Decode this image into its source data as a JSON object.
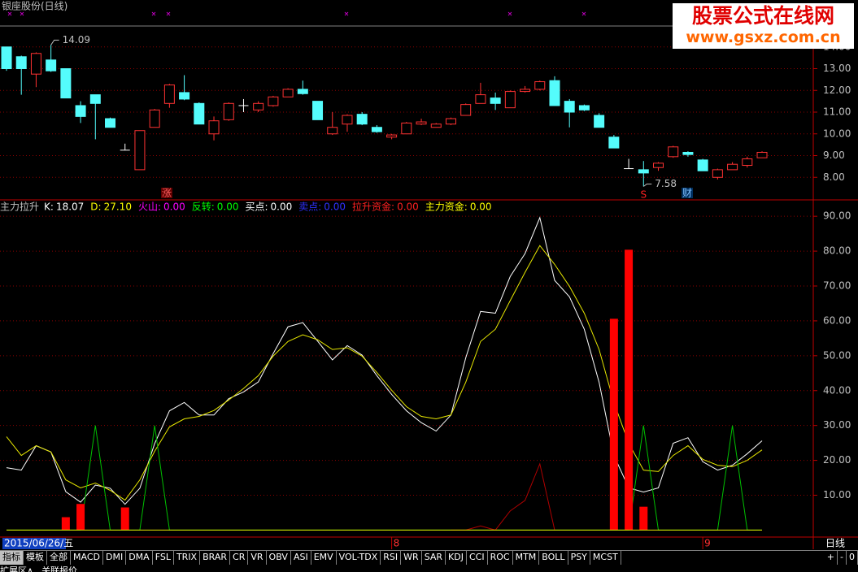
{
  "header": {
    "title": "银座股份(日线)"
  },
  "watermark": {
    "title": "股票公式在线网",
    "url": "www.gsxz.com.cn"
  },
  "chart_data": [
    {
      "type": "candlestick",
      "open": [
        14.0,
        13.55,
        12.75,
        13.4,
        13.0,
        11.3,
        11.8,
        10.7,
        9.25,
        8.35,
        10.3,
        11.4,
        11.9,
        11.4,
        10.0,
        10.65,
        11.3,
        11.1,
        11.3,
        11.7,
        12.05,
        11.5,
        10.0,
        10.45,
        10.9,
        10.3,
        9.85,
        10.0,
        10.45,
        10.3,
        10.45,
        10.85,
        11.4,
        11.65,
        11.2,
        11.95,
        12.05,
        12.45,
        11.5,
        11.3,
        10.85,
        9.85,
        8.4,
        8.35,
        8.45,
        8.95,
        9.15,
        8.8,
        8.0,
        8.35,
        8.55,
        8.9
      ],
      "high": [
        14.0,
        13.6,
        13.75,
        14.09,
        13.0,
        11.5,
        11.8,
        10.75,
        9.55,
        10.15,
        11.15,
        12.3,
        12.7,
        11.45,
        10.8,
        11.45,
        11.6,
        11.5,
        11.75,
        12.1,
        12.45,
        11.5,
        11.0,
        10.9,
        11.0,
        10.4,
        10.0,
        10.55,
        10.7,
        10.5,
        10.75,
        11.4,
        12.35,
        11.9,
        12.0,
        12.2,
        12.45,
        12.65,
        11.6,
        11.35,
        10.95,
        9.95,
        8.85,
        8.75,
        8.7,
        9.45,
        9.2,
        8.85,
        8.4,
        8.7,
        8.95,
        9.2
      ],
      "low": [
        12.9,
        11.8,
        12.15,
        12.85,
        11.65,
        10.5,
        9.75,
        10.3,
        9.25,
        8.35,
        10.3,
        11.2,
        11.55,
        10.45,
        9.7,
        10.6,
        11.0,
        11.0,
        11.25,
        11.7,
        11.8,
        10.65,
        9.95,
        10.1,
        10.4,
        10.05,
        9.75,
        10.0,
        10.4,
        10.3,
        10.4,
        10.85,
        11.4,
        11.1,
        11.2,
        11.9,
        12.0,
        11.3,
        10.3,
        11.05,
        10.3,
        9.35,
        8.4,
        7.58,
        8.3,
        8.9,
        8.95,
        8.3,
        7.9,
        8.35,
        8.45,
        8.9
      ],
      "close": [
        13.0,
        13.0,
        13.7,
        12.9,
        11.65,
        10.8,
        11.4,
        10.3,
        9.25,
        10.15,
        11.1,
        12.25,
        11.6,
        10.45,
        10.6,
        11.4,
        11.3,
        11.4,
        11.7,
        12.05,
        11.85,
        10.65,
        10.3,
        10.85,
        10.45,
        10.1,
        9.95,
        10.5,
        10.55,
        10.45,
        10.7,
        11.35,
        11.8,
        11.4,
        11.95,
        12.05,
        12.4,
        11.3,
        11.0,
        11.1,
        10.3,
        9.35,
        8.4,
        8.2,
        8.65,
        9.4,
        9.05,
        8.3,
        8.35,
        8.6,
        8.85,
        9.15
      ],
      "up_color": "#ff3232",
      "down_color": "#54fcfc",
      "flat_color": "#ffffff",
      "ylim": [
        7,
        15
      ],
      "yticks": [
        {
          "value": 8,
          "label": "8.00"
        },
        {
          "value": 9,
          "label": "9.00"
        },
        {
          "value": 10,
          "label": "10.00"
        },
        {
          "value": 11,
          "label": "11.00"
        },
        {
          "value": 12,
          "label": "12.00"
        },
        {
          "value": 13,
          "label": "13.00"
        },
        {
          "value": 14,
          "label": "14.00"
        }
      ],
      "grid": true,
      "annotations": [
        "14.09",
        "7.58",
        "涨",
        "S",
        "财"
      ]
    },
    {
      "type": "line",
      "title": "主力拉升",
      "legend": [
        {
          "name": "K:",
          "value": "18.07",
          "color": "#ffffff"
        },
        {
          "name": "D:",
          "value": "27.10",
          "color": "#ffff00"
        },
        {
          "name": "火山:",
          "value": "0.00",
          "color": "#ff00ff"
        },
        {
          "name": "反转:",
          "value": "0.00",
          "color": "#00ff00"
        },
        {
          "name": "买点:",
          "value": "0.00",
          "color": "#ffffff"
        },
        {
          "name": "卖点:",
          "value": "0.00",
          "color": "#3030ff"
        },
        {
          "name": "拉升资金:",
          "value": "0.00",
          "color": "#ff2020"
        },
        {
          "name": "主力资金:",
          "value": "0.00",
          "color": "#ffff00"
        }
      ],
      "categories": [
        "2015/06/26/五",
        null,
        null,
        null,
        null,
        null,
        null,
        null,
        null,
        null,
        null,
        null,
        null,
        null,
        null,
        null,
        null,
        null,
        null,
        null,
        null,
        null,
        null,
        null,
        null,
        null,
        "8",
        null,
        null,
        null,
        null,
        null,
        null,
        null,
        null,
        null,
        null,
        null,
        null,
        null,
        null,
        null,
        null,
        null,
        null,
        null,
        null,
        "9",
        null,
        null,
        null,
        null
      ],
      "series": [
        {
          "color": "#ffffff",
          "values": [
            17.9,
            17.2,
            24.2,
            22.4,
            11,
            8,
            12.9,
            12,
            7.4,
            12,
            24.8,
            34.2,
            36.6,
            33,
            33,
            37.7,
            39.6,
            42.5,
            50.6,
            58.3,
            59.5,
            54.2,
            48.8,
            52.9,
            50.2,
            44.3,
            38.9,
            34.2,
            30.8,
            28.4,
            33,
            49.4,
            62.7,
            62.2,
            72.7,
            79.3,
            89.6,
            71.6,
            66.9,
            57.6,
            42.4,
            21.4,
            12.1,
            10.9,
            12.1,
            24.9,
            26.5,
            19.6,
            17.2,
            18.6,
            21.9,
            25.6
          ]
        },
        {
          "color": "#e8e800",
          "values": [
            26.8,
            21.4,
            24.2,
            22.4,
            14.4,
            12.1,
            13.5,
            11.4,
            8.6,
            14.4,
            22.6,
            29.6,
            31.9,
            32.6,
            34.3,
            37.3,
            40.6,
            44.3,
            49.9,
            54.1,
            56,
            54.6,
            51.8,
            52.3,
            49.9,
            45.2,
            40.1,
            35.4,
            32.6,
            31.9,
            33,
            42.4,
            54.1,
            57.6,
            65.8,
            73.9,
            81.6,
            76.2,
            69.9,
            62.2,
            51.8,
            36.6,
            24.9,
            17.2,
            16.8,
            21.4,
            24.2,
            20.3,
            18.6,
            18.2,
            20,
            23
          ]
        },
        {
          "color": "#00c000",
          "values": [
            0,
            0,
            0,
            0,
            0,
            0,
            30,
            0,
            0,
            0,
            30,
            0,
            0,
            0,
            0,
            0,
            0,
            0,
            0,
            0,
            0,
            0,
            0,
            0,
            0,
            0,
            0,
            0,
            0,
            0,
            0,
            0,
            0,
            0,
            0,
            0,
            0,
            0,
            0,
            0,
            0,
            0,
            0,
            30,
            0,
            0,
            0,
            0,
            0,
            30,
            0,
            0
          ]
        },
        {
          "type": "bar",
          "color": "#ff0000",
          "values": [
            null,
            null,
            null,
            null,
            3.7,
            7.5,
            null,
            null,
            6.5,
            null,
            null,
            null,
            null,
            null,
            null,
            null,
            null,
            null,
            null,
            null,
            null,
            null,
            null,
            null,
            null,
            null,
            null,
            null,
            null,
            null,
            null,
            null,
            null,
            null,
            null,
            null,
            null,
            null,
            null,
            null,
            null,
            60.6,
            80.4,
            6.7,
            null,
            null,
            null,
            null,
            null,
            null,
            null,
            null
          ]
        },
        {
          "color": "#b00000",
          "values": [
            null,
            null,
            null,
            null,
            null,
            null,
            null,
            null,
            null,
            null,
            null,
            null,
            null,
            null,
            null,
            null,
            null,
            null,
            null,
            null,
            null,
            null,
            null,
            null,
            null,
            null,
            null,
            null,
            null,
            null,
            0,
            0,
            1.2,
            0,
            5.5,
            8.5,
            19,
            0,
            null,
            null,
            null,
            null,
            null,
            null,
            null,
            null,
            null,
            null,
            null,
            null,
            null,
            null
          ]
        },
        {
          "color": "#e8e800",
          "values": [
            0,
            0,
            0,
            0,
            0,
            0,
            0,
            0,
            0,
            0,
            0,
            0,
            0,
            0,
            0,
            0,
            0,
            0,
            0,
            0,
            0,
            0,
            0,
            0,
            0,
            0,
            0,
            0,
            0,
            0,
            0,
            0,
            0,
            0,
            0,
            0,
            0,
            0,
            0,
            0,
            0,
            0,
            0,
            0,
            0,
            0,
            0,
            0,
            0,
            0,
            0,
            0
          ]
        }
      ],
      "ylim": [
        -2,
        94
      ],
      "yticks": [
        {
          "value": 10,
          "label": "10.00"
        },
        {
          "value": 20,
          "label": "20.00"
        },
        {
          "value": 30,
          "label": "30.00"
        },
        {
          "value": 40,
          "label": "40.00"
        },
        {
          "value": 50,
          "label": "50.00"
        },
        {
          "value": 60,
          "label": "60.00"
        },
        {
          "value": 70,
          "label": "70.00"
        },
        {
          "value": 80,
          "label": "80.00"
        },
        {
          "value": 90,
          "label": "90.00"
        }
      ],
      "grid": true
    }
  ],
  "period": "日线",
  "toolbar": {
    "tabs": [
      "指标",
      "模板",
      "全部",
      "MACD",
      "DMI",
      "DMA",
      "FSL",
      "TRIX",
      "BRAR",
      "CR",
      "VR",
      "OBV",
      "ASI",
      "EMV",
      "VOL-TDX",
      "RSI",
      "WR",
      "SAR",
      "KDJ",
      "CCI",
      "ROC",
      "MTM",
      "BOLL",
      "PSY",
      "MCST"
    ],
    "controls": [
      "+",
      "-",
      "0"
    ]
  },
  "footer": [
    "扩展区∧",
    "关联报价"
  ]
}
